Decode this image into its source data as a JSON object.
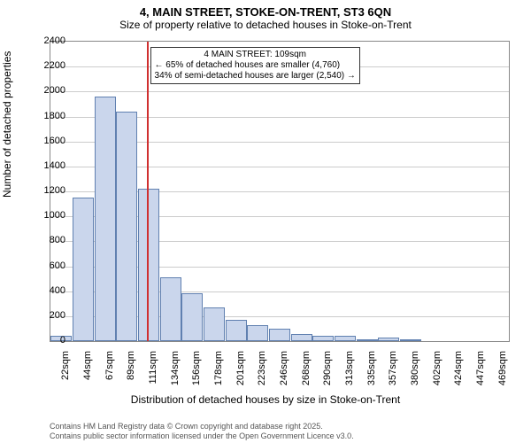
{
  "title": "4, MAIN STREET, STOKE-ON-TRENT, ST3 6QN",
  "subtitle": "Size of property relative to detached houses in Stoke-on-Trent",
  "x_axis_label": "Distribution of detached houses by size in Stoke-on-Trent",
  "y_axis_label": "Number of detached properties",
  "chart": {
    "type": "histogram",
    "y_min": 0,
    "y_max": 2400,
    "y_tick_step": 200,
    "bar_fill": "#cad6ec",
    "bar_stroke": "#6080b0",
    "grid_color": "#cccccc",
    "background": "#ffffff",
    "bars": [
      {
        "label": "22sqm",
        "value": 40
      },
      {
        "label": "44sqm",
        "value": 1150
      },
      {
        "label": "67sqm",
        "value": 1960
      },
      {
        "label": "89sqm",
        "value": 1840
      },
      {
        "label": "111sqm",
        "value": 1220
      },
      {
        "label": "134sqm",
        "value": 510
      },
      {
        "label": "156sqm",
        "value": 380
      },
      {
        "label": "178sqm",
        "value": 270
      },
      {
        "label": "201sqm",
        "value": 170
      },
      {
        "label": "223sqm",
        "value": 130
      },
      {
        "label": "246sqm",
        "value": 100
      },
      {
        "label": "268sqm",
        "value": 60
      },
      {
        "label": "290sqm",
        "value": 40
      },
      {
        "label": "313sqm",
        "value": 40
      },
      {
        "label": "335sqm",
        "value": 10
      },
      {
        "label": "357sqm",
        "value": 25
      },
      {
        "label": "380sqm",
        "value": 10
      },
      {
        "label": "402sqm",
        "value": 5
      },
      {
        "label": "424sqm",
        "value": 0
      },
      {
        "label": "447sqm",
        "value": 5
      },
      {
        "label": "469sqm",
        "value": 5
      }
    ],
    "marker": {
      "position_index": 3.9,
      "color": "#d03030",
      "label_title": "4 MAIN STREET: 109sqm",
      "label_line1": "← 65% of detached houses are smaller (4,760)",
      "label_line2": "34% of semi-detached houses are larger (2,540) →"
    }
  },
  "footer_line1": "Contains HM Land Registry data © Crown copyright and database right 2025.",
  "footer_line2": "Contains public sector information licensed under the Open Government Licence v3.0."
}
